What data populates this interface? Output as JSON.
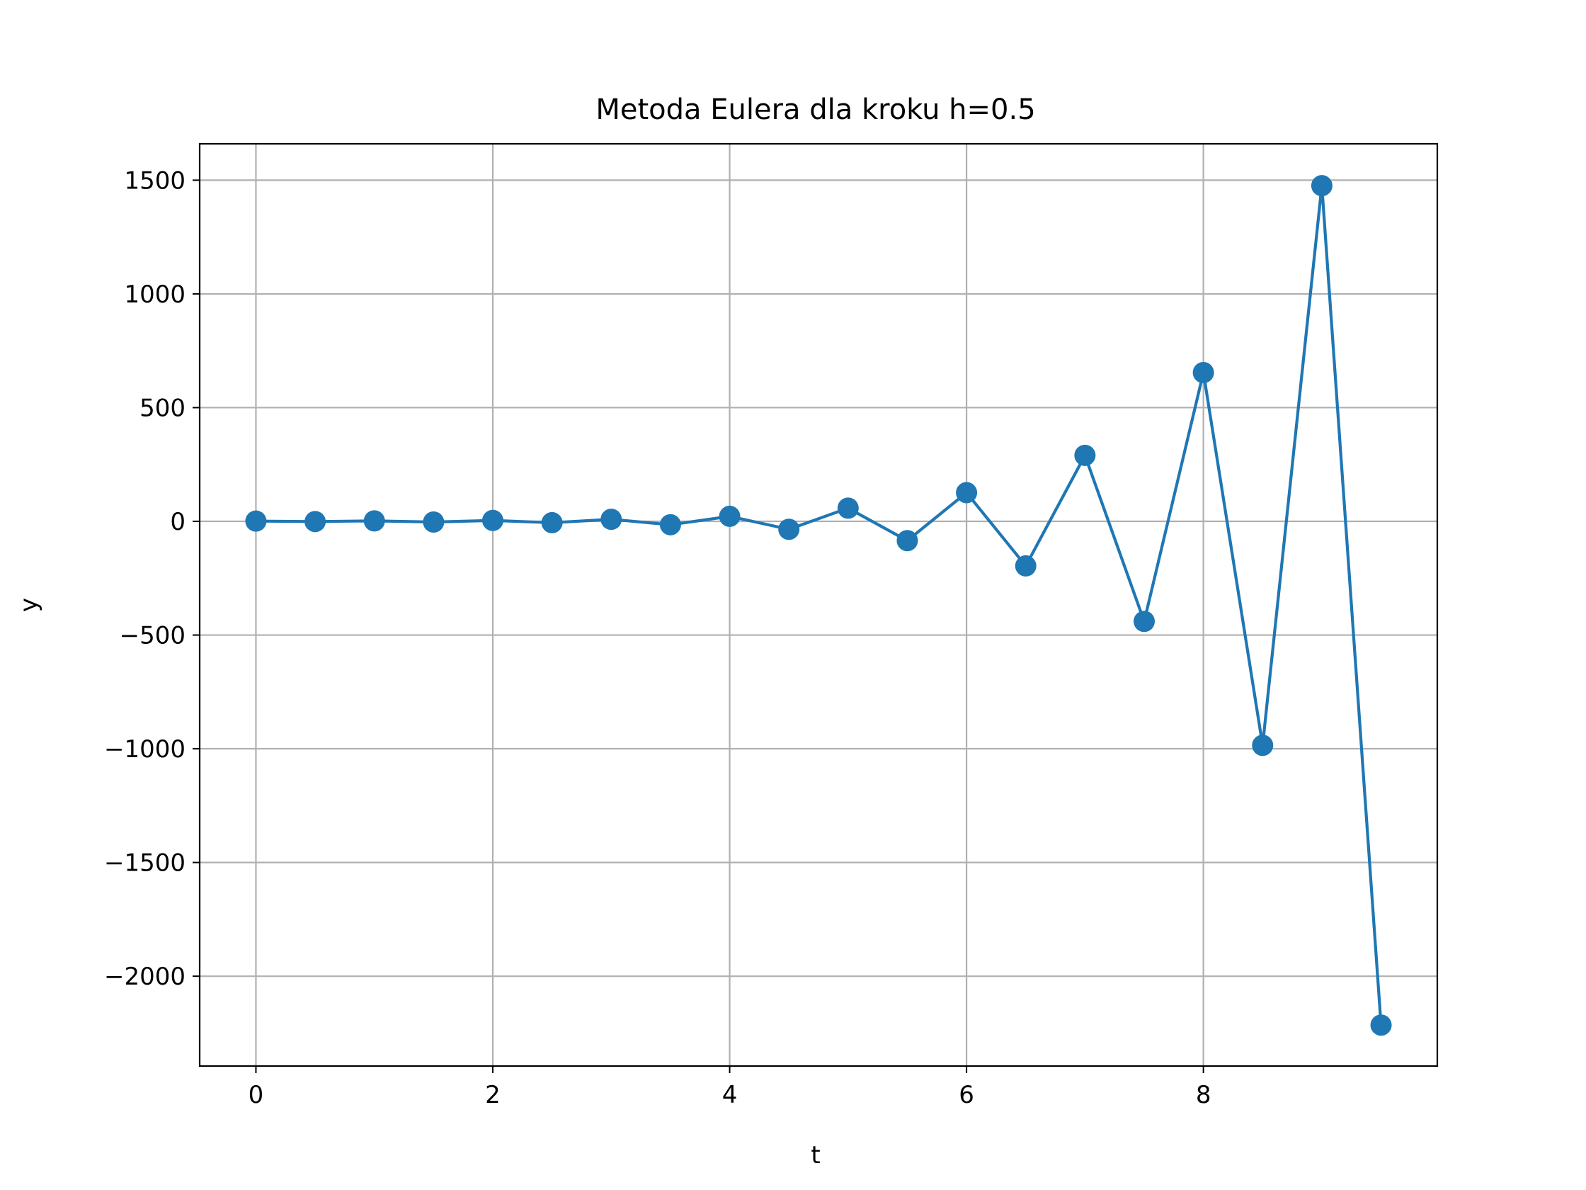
{
  "chart_data": {
    "type": "line",
    "title": "Metoda Eulera dla kroku h=0.5",
    "xlabel": "t",
    "ylabel": "y",
    "xlim": [
      -0.475,
      9.975
    ],
    "ylim": [
      -2395,
      1660
    ],
    "xticks": [
      0,
      2,
      4,
      6,
      8
    ],
    "xtick_labels": [
      "0",
      "2",
      "4",
      "6",
      "8"
    ],
    "yticks": [
      -2000,
      -1500,
      -1000,
      -500,
      0,
      500,
      1000,
      1500
    ],
    "ytick_labels": [
      "−2000",
      "−1500",
      "−1000",
      "−500",
      "0",
      "500",
      "1000",
      "1500"
    ],
    "grid": true,
    "marker": "circle",
    "line_color": "#1f77b4",
    "series": [
      {
        "x": [
          0,
          0.5,
          1,
          1.5,
          2,
          2.5,
          3,
          3.5,
          4,
          4.5,
          5,
          5.5,
          6,
          6.5,
          7,
          7.5,
          8,
          8.5,
          9,
          9.5
        ],
        "y": [
          1,
          -1,
          2,
          -3,
          4,
          -6,
          9,
          -15,
          22,
          -35,
          58,
          -85,
          126,
          -196,
          290,
          -440,
          654,
          -985,
          1476,
          -2215
        ]
      }
    ]
  }
}
